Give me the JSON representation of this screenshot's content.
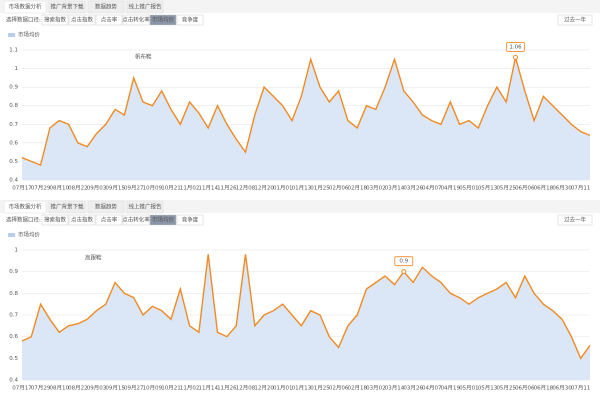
{
  "ui": [
    {
      "tabs": [
        "市场数据分析",
        "推广背景下载",
        "数据趋势",
        "线上推广报告"
      ],
      "filter_label": "选择数据口径:",
      "subtabs": [
        "搜索指数",
        "点击指数",
        "点击率",
        "点击转化率",
        "市场均价",
        "竞争度"
      ],
      "button": "过去一年"
    },
    {
      "tabs": [
        "市场数据分析",
        "推广背景下载",
        "数据趋势",
        "线上推广报告"
      ],
      "filter_label": "选择数据口径:",
      "subtabs": [
        "搜索指数",
        "点击指数",
        "点击率",
        "点击转化率",
        "市场均价",
        "竞争度"
      ],
      "button": "过去一年"
    }
  ],
  "chart_data": [
    {
      "type": "area",
      "annotation": "帆布鞋",
      "categories": [
        "07月17",
        null,
        "07月29",
        null,
        "08月10",
        null,
        "08月22",
        null,
        "09月03",
        null,
        "09月15",
        null,
        "09月27",
        null,
        "10月09",
        null,
        "10月21",
        null,
        "11月02",
        null,
        "11月14",
        null,
        "11月26",
        null,
        "12月08",
        null,
        "12月20",
        null,
        "01月01",
        null,
        "01月13",
        null,
        "01月25",
        null,
        "02月06",
        null,
        "02月18",
        null,
        "03月02",
        null,
        "03月14",
        null,
        "03月26",
        null,
        "04月07",
        null,
        "04月19",
        null,
        "05月01",
        null,
        "05月13",
        null,
        "05月25",
        null,
        "06月06",
        null,
        "06月18",
        null,
        "06月30",
        null,
        "07月11",
        null
      ],
      "series": [
        {
          "name": "市场均价",
          "color": "#f08a24",
          "values": [
            0.52,
            0.5,
            0.48,
            0.68,
            0.72,
            0.7,
            0.6,
            0.58,
            0.65,
            0.7,
            0.78,
            0.75,
            0.95,
            0.82,
            0.8,
            0.88,
            0.78,
            0.7,
            0.82,
            0.76,
            0.68,
            0.8,
            0.7,
            0.62,
            0.55,
            0.75,
            0.9,
            0.85,
            0.8,
            0.72,
            0.85,
            1.05,
            0.9,
            0.82,
            0.88,
            0.72,
            0.68,
            0.8,
            0.78,
            0.9,
            1.05,
            0.88,
            0.82,
            0.75,
            0.72,
            0.7,
            0.82,
            0.7,
            0.72,
            0.68,
            0.8,
            0.9,
            0.82,
            1.06,
            0.88,
            0.72,
            0.85,
            0.8,
            0.75,
            0.7,
            0.66,
            0.64
          ]
        }
      ],
      "tooltip": {
        "point": 53,
        "label": "1.06"
      },
      "ylim": [
        0.4,
        1.1
      ],
      "yticks": [
        0.4,
        0.5,
        0.6,
        0.7,
        0.8,
        0.9,
        1,
        1.1
      ],
      "grid": true
    },
    {
      "type": "area",
      "annotation": "高跟鞋",
      "categories": [
        "07月17",
        null,
        "07月29",
        null,
        "08月10",
        null,
        "08月22",
        null,
        "09月03",
        null,
        "09月15",
        null,
        "09月27",
        null,
        "10月09",
        null,
        "10月21",
        null,
        "11月02",
        null,
        "11月14",
        null,
        "11月26",
        null,
        "12月08",
        null,
        "12月20",
        null,
        "01月01",
        null,
        "01月13",
        null,
        "01月25",
        null,
        "02月06",
        null,
        "02月18",
        null,
        "03月02",
        null,
        "03月14",
        null,
        "03月26",
        null,
        "04月07",
        null,
        "04月19",
        null,
        "05月01",
        null,
        "05月13",
        null,
        "05月25",
        null,
        "06月06",
        null,
        "06月18",
        null,
        "06月30",
        null,
        "07月11",
        null
      ],
      "series": [
        {
          "name": "市场均价",
          "color": "#f08a24",
          "values": [
            0.58,
            0.6,
            0.75,
            0.68,
            0.62,
            0.65,
            0.66,
            0.68,
            0.72,
            0.75,
            0.85,
            0.8,
            0.78,
            0.7,
            0.74,
            0.72,
            0.68,
            0.82,
            0.65,
            0.62,
            0.98,
            0.62,
            0.6,
            0.65,
            0.98,
            0.65,
            0.7,
            0.72,
            0.75,
            0.7,
            0.65,
            0.72,
            0.7,
            0.6,
            0.55,
            0.65,
            0.7,
            0.82,
            0.85,
            0.88,
            0.84,
            0.9,
            0.85,
            0.92,
            0.88,
            0.85,
            0.8,
            0.78,
            0.75,
            0.78,
            0.8,
            0.82,
            0.85,
            0.78,
            0.88,
            0.8,
            0.75,
            0.72,
            0.68,
            0.6,
            0.5,
            0.56
          ]
        }
      ],
      "tooltip": {
        "point": 41,
        "label": "0.9"
      },
      "ylim": [
        0.4,
        1.0
      ],
      "yticks": [
        0.4,
        0.5,
        0.6,
        0.7,
        0.8,
        0.9,
        1
      ],
      "grid": true
    }
  ]
}
